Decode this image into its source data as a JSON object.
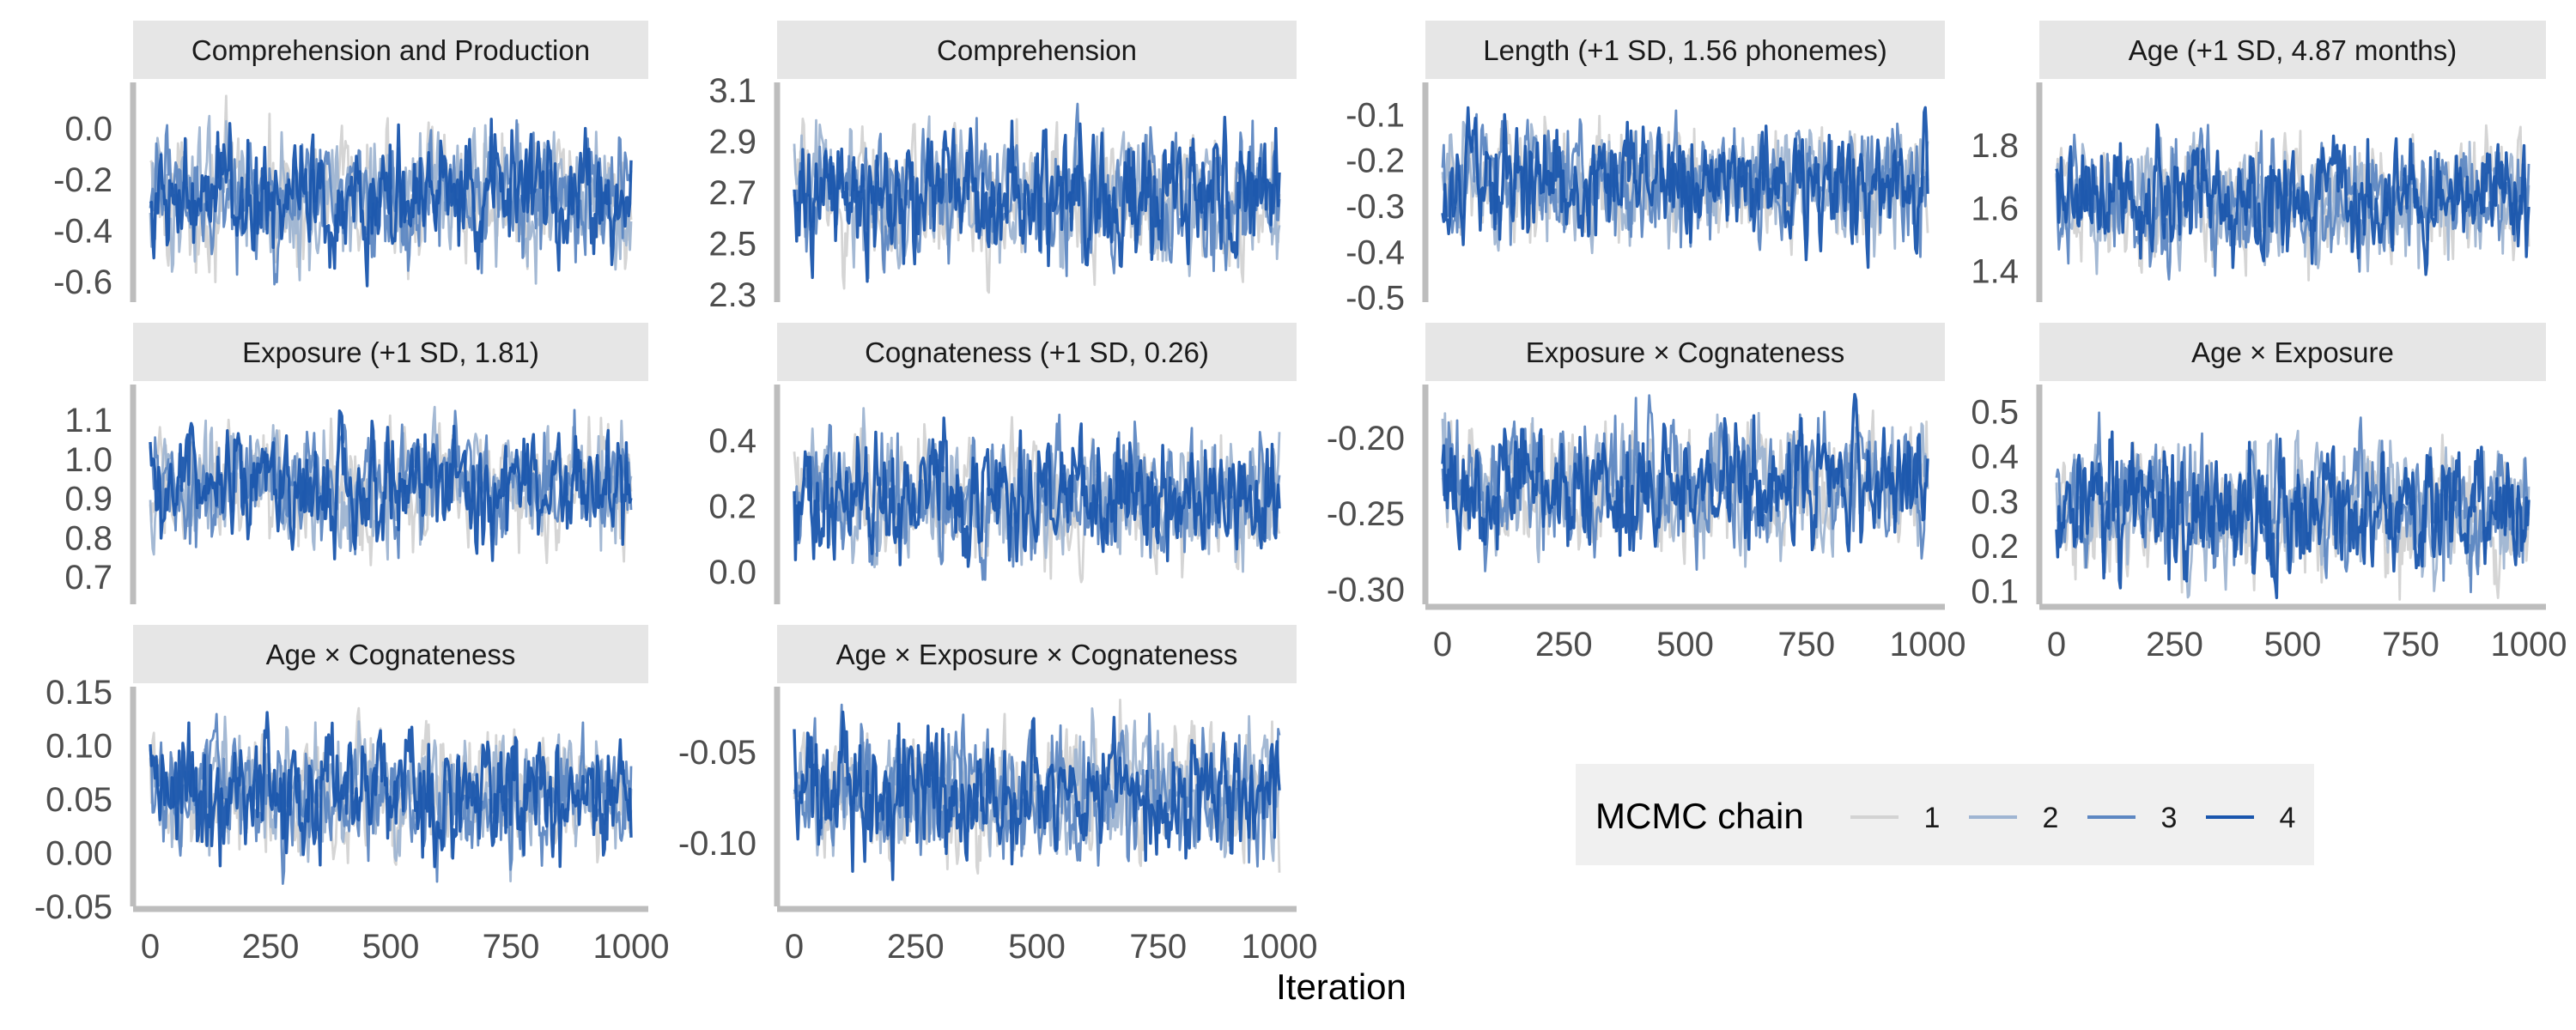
{
  "chart_data": {
    "type": "line",
    "xlabel": "Iteration",
    "xlim": [
      0,
      1000
    ],
    "x_ticks": [
      0,
      250,
      500,
      750,
      1000
    ],
    "grid": false,
    "legend": {
      "title": "MCMC chain",
      "placement": "bottom-right",
      "entries": [
        {
          "label": "1",
          "color": "#d3d3d3"
        },
        {
          "label": "2",
          "color": "#9fb5d2"
        },
        {
          "label": "3",
          "color": "#5d87c2"
        },
        {
          "label": "4",
          "color": "#1a56ad"
        }
      ]
    },
    "panels": [
      {
        "title": "Comprehension and Production",
        "ylim": [
          -0.68,
          0.18
        ],
        "yticks": [
          0.0,
          -0.2,
          -0.4,
          -0.6
        ],
        "ytick_labels": [
          "0.0",
          "-0.2",
          "-0.4",
          "-0.6"
        ],
        "center": -0.27,
        "spread": 0.12,
        "min": -0.65,
        "max": 0.13,
        "has_x_axis": false
      },
      {
        "title": "Comprehension",
        "ylim": [
          2.27,
          3.13
        ],
        "yticks": [
          3.1,
          2.9,
          2.7,
          2.5,
          2.3
        ],
        "ytick_labels": [
          "3.1",
          "2.9",
          "2.7",
          "2.5",
          "2.3"
        ],
        "center": 2.68,
        "spread": 0.12,
        "min": 2.3,
        "max": 3.05,
        "has_x_axis": false
      },
      {
        "title": "Length (+1 SD, 1.56 phonemes)",
        "ylim": [
          -0.51,
          -0.03
        ],
        "yticks": [
          -0.1,
          -0.2,
          -0.3,
          -0.4,
          -0.5
        ],
        "ytick_labels": [
          "-0.1",
          "-0.2",
          "-0.3",
          "-0.4",
          "-0.5"
        ],
        "center": -0.25,
        "spread": 0.06,
        "min": -0.47,
        "max": -0.05,
        "has_x_axis": false
      },
      {
        "title": "Age (+1 SD, 4.87 months)",
        "ylim": [
          1.3,
          2.0
        ],
        "yticks": [
          1.8,
          1.6,
          1.4
        ],
        "ytick_labels": [
          "1.8",
          "1.6",
          "1.4"
        ],
        "center": 1.62,
        "spread": 0.09,
        "min": 1.32,
        "max": 1.95,
        "has_x_axis": false
      },
      {
        "title": "Exposure (+1 SD, 1.81)",
        "ylim": [
          0.63,
          1.19
        ],
        "yticks": [
          1.1,
          1.0,
          0.9,
          0.8,
          0.7
        ],
        "ytick_labels": [
          "1.1",
          "1.0",
          "0.9",
          "0.8",
          "0.7"
        ],
        "center": 0.93,
        "spread": 0.07,
        "min": 0.65,
        "max": 1.15,
        "has_x_axis": false
      },
      {
        "title": "Cognateness (+1 SD, 0.26)",
        "ylim": [
          -0.1,
          0.57
        ],
        "yticks": [
          0.4,
          0.2,
          0.0
        ],
        "ytick_labels": [
          "0.4",
          "0.2",
          "0.0"
        ],
        "center": 0.22,
        "spread": 0.09,
        "min": -0.08,
        "max": 0.53,
        "has_x_axis": false
      },
      {
        "title": "Exposure × Cognateness",
        "ylim": [
          -0.31,
          -0.165
        ],
        "yticks": [
          -0.2,
          -0.25,
          -0.3
        ],
        "ytick_labels": [
          "-0.20",
          "-0.25",
          "-0.30"
        ],
        "center": -0.232,
        "spread": 0.02,
        "min": -0.305,
        "max": -0.17,
        "has_x_axis": true
      },
      {
        "title": "Age × Exposure",
        "ylim": [
          0.07,
          0.56
        ],
        "yticks": [
          0.5,
          0.4,
          0.3,
          0.2,
          0.1
        ],
        "ytick_labels": [
          "0.5",
          "0.4",
          "0.3",
          "0.2",
          "0.1"
        ],
        "center": 0.28,
        "spread": 0.07,
        "min": 0.08,
        "max": 0.53,
        "has_x_axis": true
      },
      {
        "title": "Age × Cognateness",
        "ylim": [
          -0.05,
          0.155
        ],
        "yticks": [
          0.15,
          0.1,
          0.05,
          0.0,
          -0.05
        ],
        "ytick_labels": [
          "0.15",
          "0.10",
          "0.05",
          "0.00",
          "-0.05"
        ],
        "center": 0.057,
        "spread": 0.027,
        "min": -0.04,
        "max": 0.145,
        "has_x_axis": true
      },
      {
        "title": "Age × Exposure × Cognateness",
        "ylim": [
          -0.135,
          -0.014
        ],
        "yticks": [
          -0.05,
          -0.1
        ],
        "ytick_labels": [
          "-0.05",
          "-0.10"
        ],
        "center": -0.073,
        "spread": 0.017,
        "min": -0.132,
        "max": -0.018,
        "has_x_axis": true
      }
    ]
  }
}
